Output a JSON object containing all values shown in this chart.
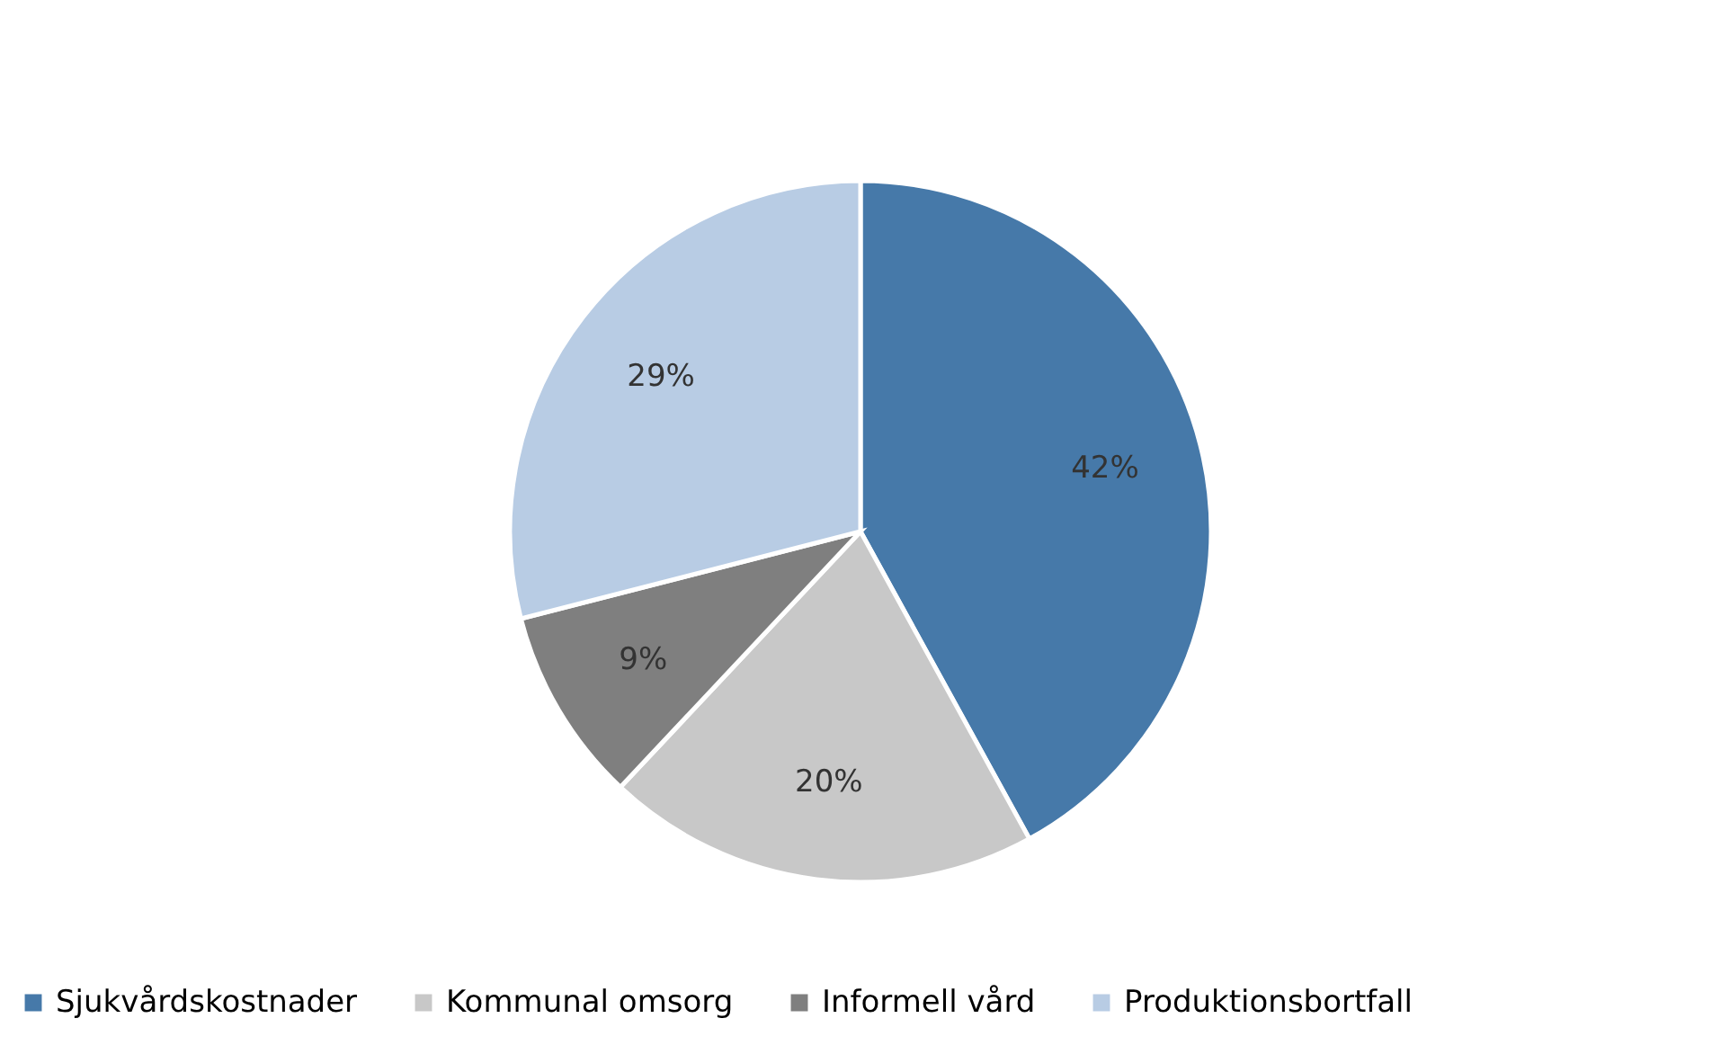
{
  "chart_data": {
    "type": "pie",
    "categories": [
      "Sjukvårdskostnader",
      "Kommunal omsorg",
      "Informell vård",
      "Produktionsbortfall"
    ],
    "values": [
      42,
      20,
      9,
      29
    ],
    "value_labels": [
      "42%",
      "20%",
      "9%",
      "29%"
    ],
    "colors": [
      "#4679a9",
      "#c8c8c8",
      "#7f7f7f",
      "#b8cce4"
    ],
    "legend": "bottom"
  }
}
